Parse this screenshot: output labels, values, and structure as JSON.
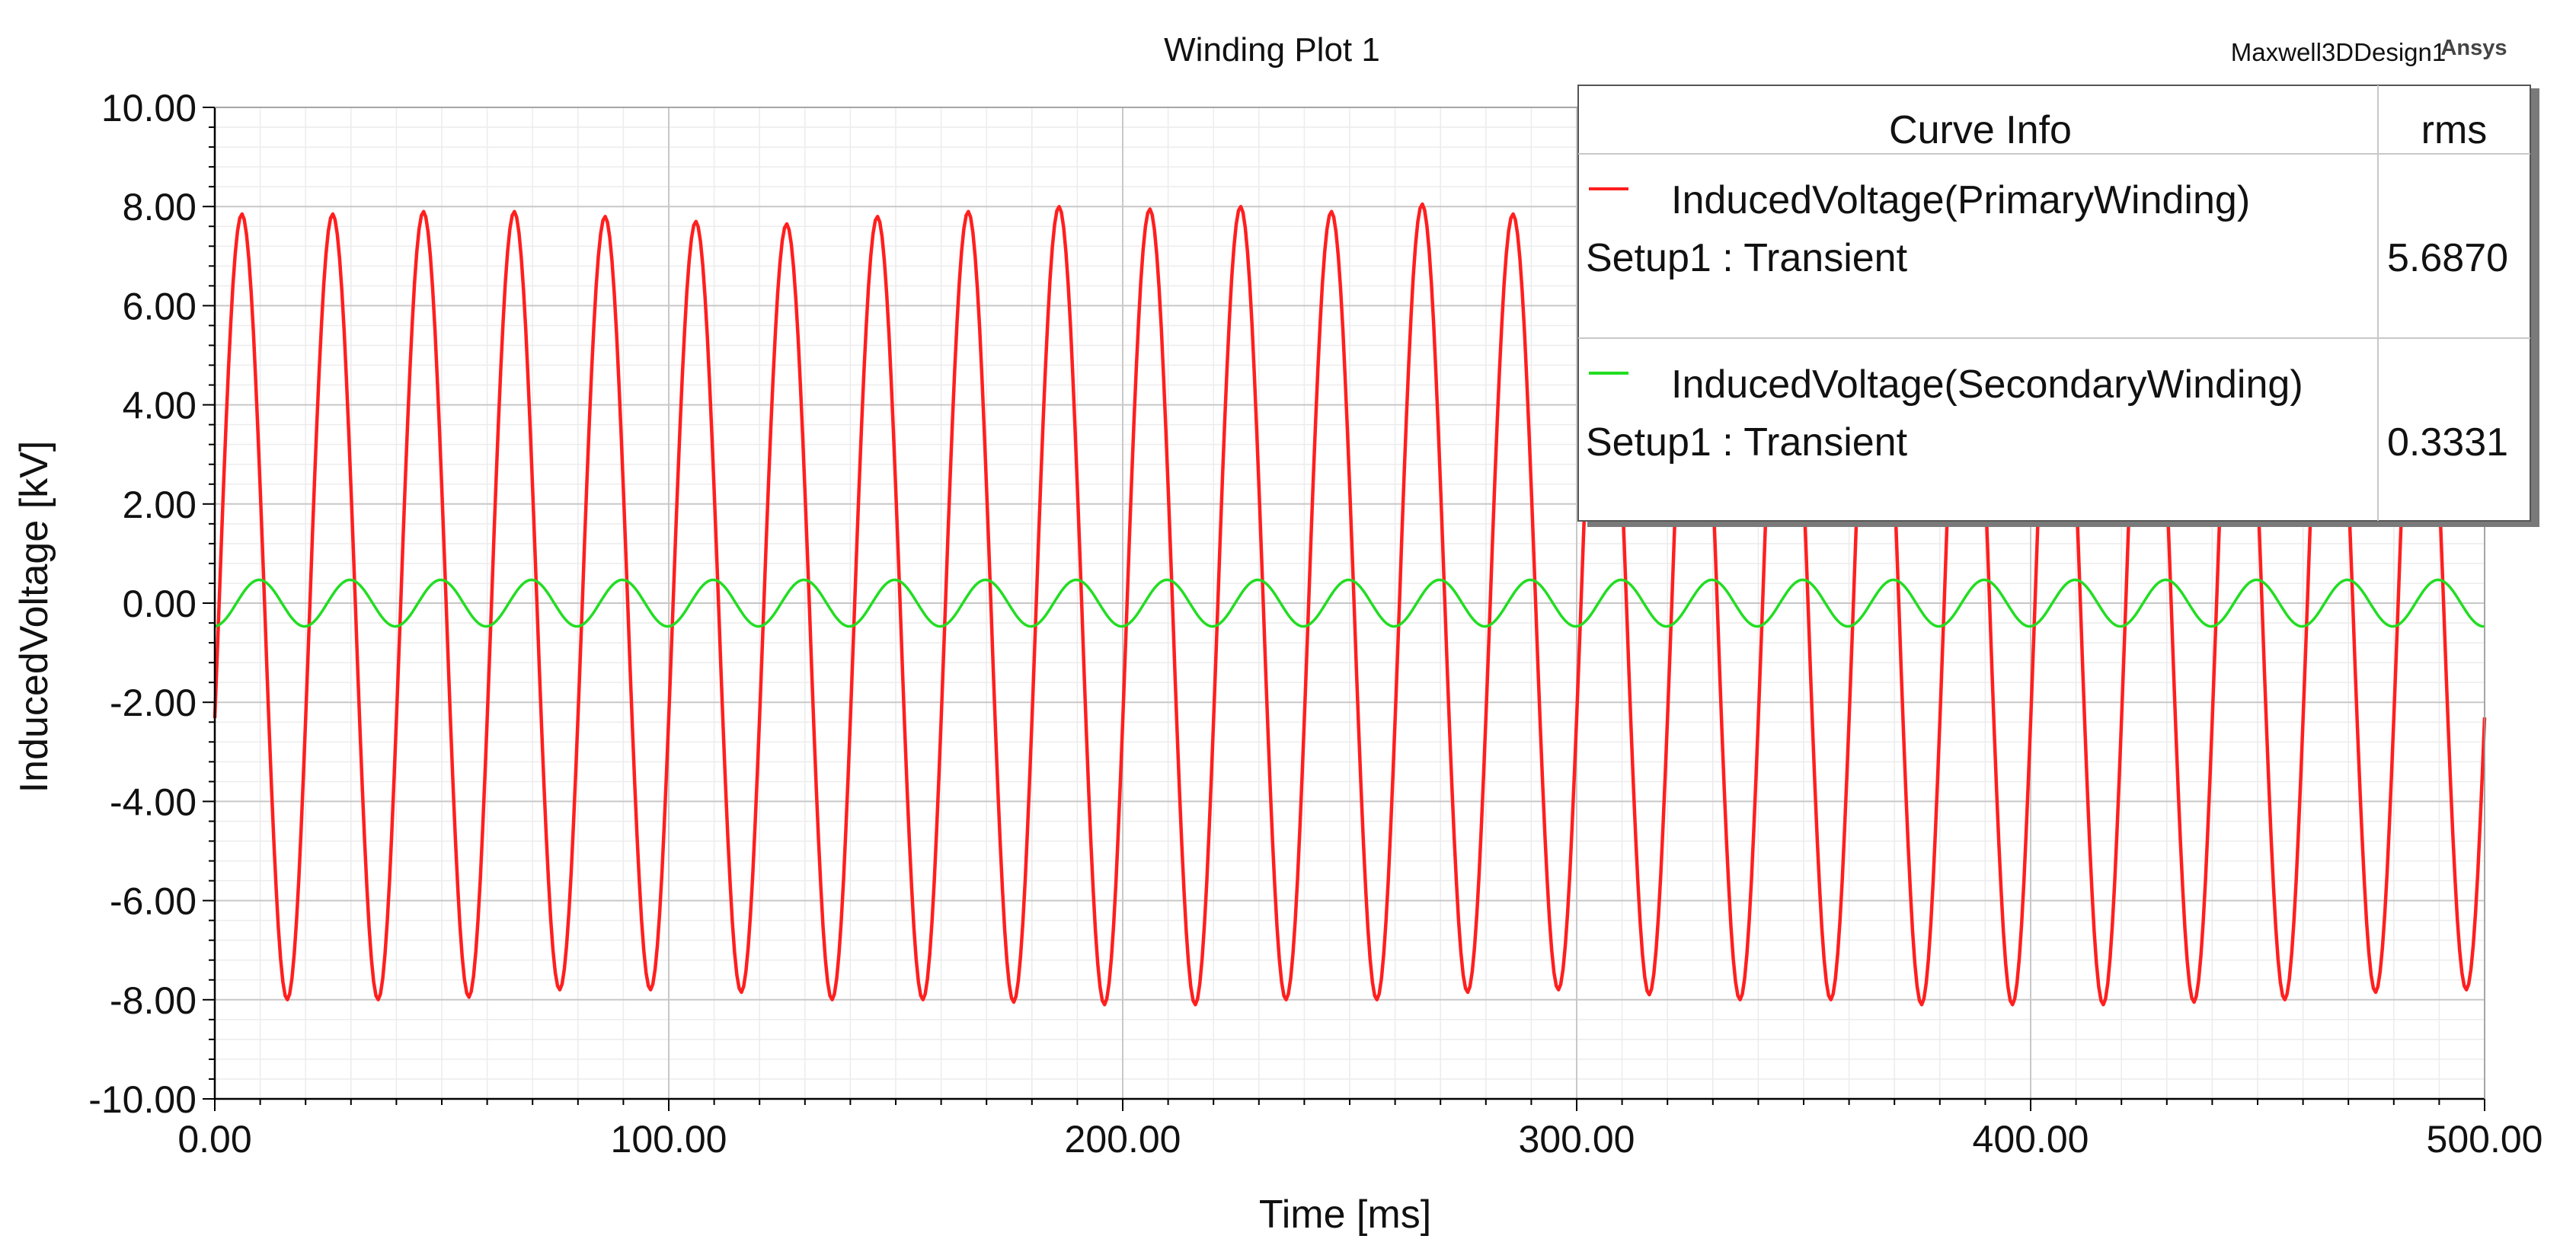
{
  "header": {
    "title": "Winding Plot 1",
    "design_name": "Maxwell3DDesign1",
    "brand": "Ansys"
  },
  "legend": {
    "header_curve": "Curve Info",
    "header_stat": "rms",
    "entries": [
      {
        "name": "InducedVoltage(PrimaryWinding)",
        "setup": "Setup1 : Transient",
        "rms": "5.6870",
        "color": "#ff1f1f"
      },
      {
        "name": "InducedVoltage(SecondaryWinding)",
        "setup": "Setup1 : Transient",
        "rms": "0.3331",
        "color": "#22dd22"
      }
    ]
  },
  "chart_data": {
    "type": "line",
    "title": "Winding Plot 1",
    "xlabel": "Time [ms]",
    "ylabel": "InducedVoltage [kV]",
    "xlim": [
      0,
      500
    ],
    "ylim": [
      -10,
      10
    ],
    "x_ticks": [
      0,
      100,
      200,
      300,
      400,
      500
    ],
    "x_tick_labels": [
      "0.00",
      "100.00",
      "200.00",
      "300.00",
      "400.00",
      "500.00"
    ],
    "y_ticks": [
      10,
      8,
      6,
      4,
      2,
      0,
      -2,
      -4,
      -6,
      -8,
      -10
    ],
    "y_tick_labels": [
      "10.00",
      "8.00",
      "6.00",
      "4.00",
      "2.00",
      "0.00",
      "-2.00",
      "-4.00",
      "-6.00",
      "-8.00",
      "-10.00"
    ],
    "grid": true,
    "legend_position": "top-right",
    "series": [
      {
        "name": "InducedVoltage(PrimaryWinding)",
        "color": "#ff1f1f",
        "amplitude_kv": 7.95,
        "frequency_hz": 50,
        "phase_rad": -0.3,
        "rms_kv": 5.687,
        "peaks": [
          {
            "x": 5.5,
            "y": 7.85
          },
          {
            "x": 25.5,
            "y": 7.85
          },
          {
            "x": 45.5,
            "y": 7.9
          },
          {
            "x": 65.5,
            "y": 7.9
          },
          {
            "x": 85.5,
            "y": 7.8
          },
          {
            "x": 105.5,
            "y": 7.7
          },
          {
            "x": 125.5,
            "y": 7.65
          },
          {
            "x": 145.5,
            "y": 7.8
          },
          {
            "x": 165.5,
            "y": 7.9
          },
          {
            "x": 185.5,
            "y": 8.0
          },
          {
            "x": 205.5,
            "y": 7.95
          },
          {
            "x": 225.5,
            "y": 8.0
          },
          {
            "x": 245.5,
            "y": 7.9
          },
          {
            "x": 265.5,
            "y": 8.05
          },
          {
            "x": 285.5,
            "y": 7.85
          }
        ],
        "troughs": [
          {
            "x": 15.5,
            "y": -8.0
          },
          {
            "x": 35.5,
            "y": -8.0
          },
          {
            "x": 55.5,
            "y": -7.95
          },
          {
            "x": 75.5,
            "y": -7.8
          },
          {
            "x": 95.5,
            "y": -7.8
          },
          {
            "x": 115.5,
            "y": -7.85
          },
          {
            "x": 135.5,
            "y": -8.0
          },
          {
            "x": 155.5,
            "y": -8.0
          },
          {
            "x": 175.5,
            "y": -8.05
          },
          {
            "x": 195.5,
            "y": -8.1
          },
          {
            "x": 215.5,
            "y": -8.1
          },
          {
            "x": 235.5,
            "y": -8.0
          },
          {
            "x": 255.5,
            "y": -8.0
          },
          {
            "x": 275.5,
            "y": -7.85
          },
          {
            "x": 295.5,
            "y": -7.8
          },
          {
            "x": 315.5,
            "y": -7.9
          },
          {
            "x": 335.5,
            "y": -8.0
          },
          {
            "x": 355.5,
            "y": -8.0
          },
          {
            "x": 375.5,
            "y": -8.1
          },
          {
            "x": 395.5,
            "y": -8.1
          },
          {
            "x": 415.5,
            "y": -8.1
          },
          {
            "x": 435.5,
            "y": -8.05
          },
          {
            "x": 455.5,
            "y": -8.0
          },
          {
            "x": 475.5,
            "y": -7.85
          },
          {
            "x": 495.5,
            "y": -7.8
          }
        ]
      },
      {
        "name": "InducedVoltage(SecondaryWinding)",
        "color": "#22dd22",
        "amplitude_kv": 0.47,
        "frequency_hz": 50,
        "phase_rad": -1.5,
        "rms_kv": 0.3331,
        "peaks": [
          {
            "x": 17,
            "y": 0.47
          },
          {
            "x": 37,
            "y": 0.47
          },
          {
            "x": 57,
            "y": 0.47
          },
          {
            "x": 77,
            "y": 0.47
          }
        ],
        "troughs": [
          {
            "x": 7,
            "y": -0.47
          },
          {
            "x": 27,
            "y": -0.47
          },
          {
            "x": 47,
            "y": -0.47
          },
          {
            "x": 67,
            "y": -0.47
          }
        ]
      }
    ]
  }
}
